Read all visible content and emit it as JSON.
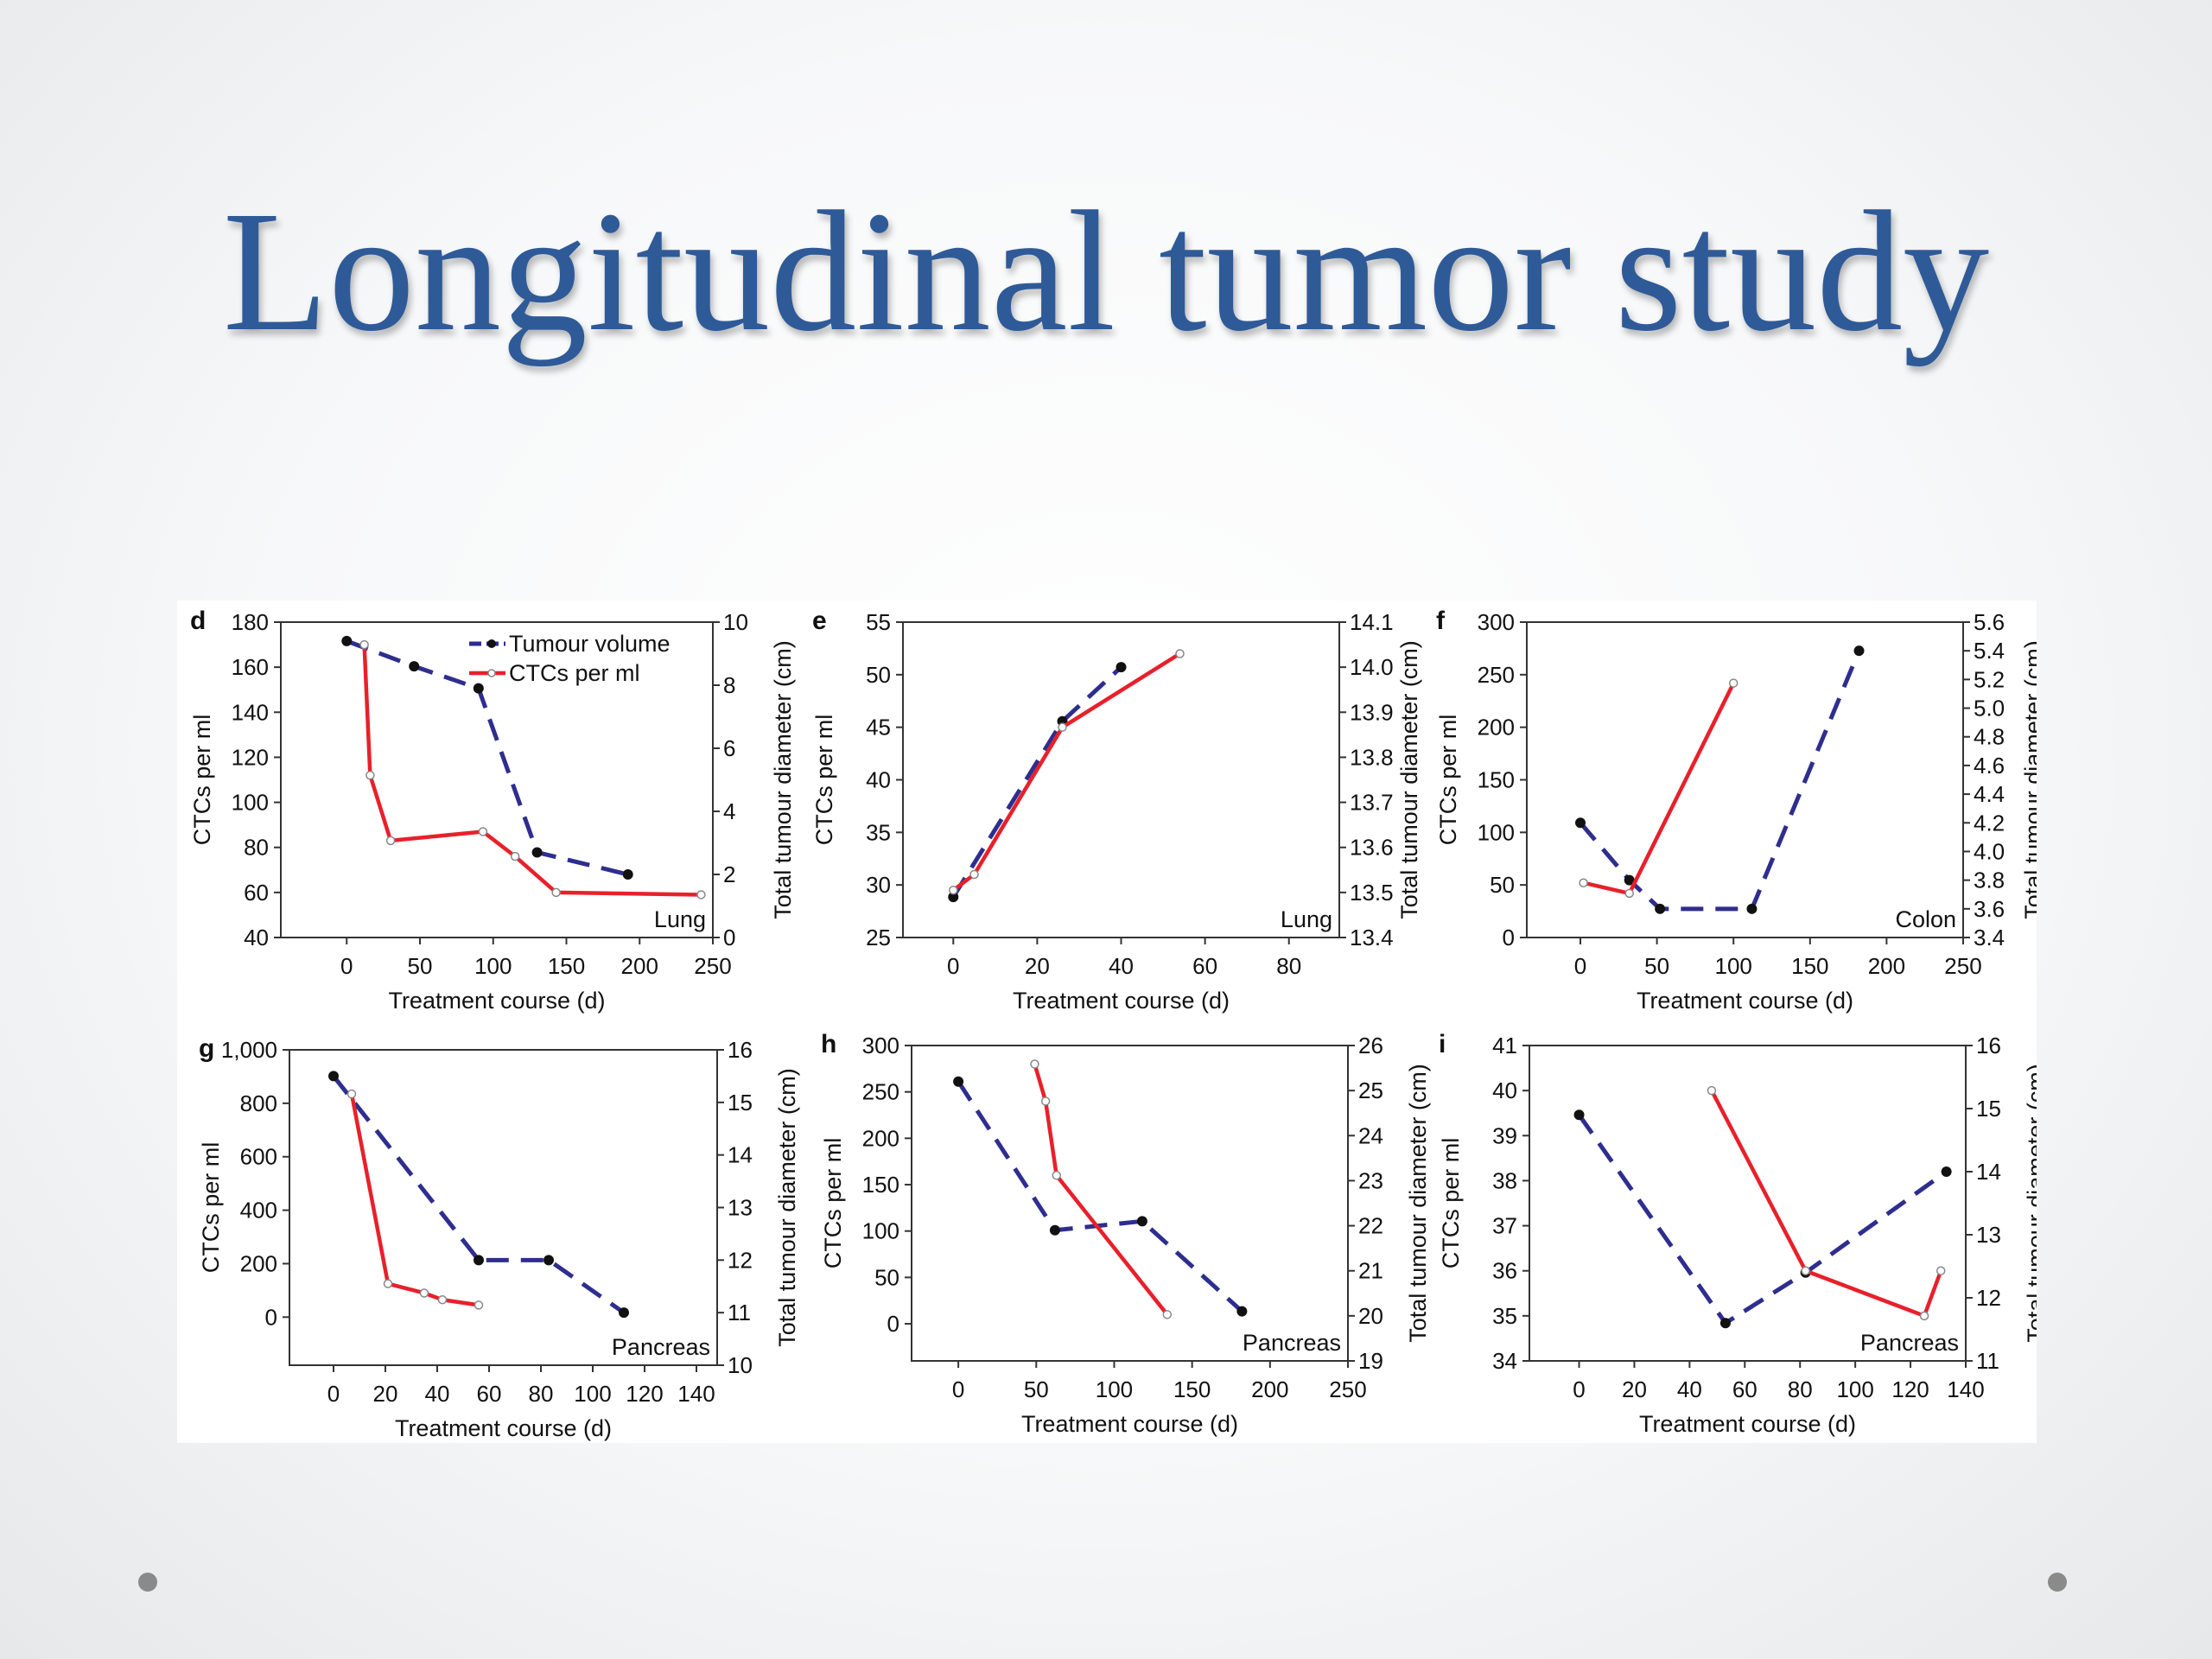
{
  "title": "Longitudinal tumor study",
  "colors": {
    "tumour": "#2e2e8f",
    "ctc": "#e8202a",
    "title": "#2f5a98"
  },
  "legend": {
    "tumour": "Tumour volume",
    "ctc": "CTCs per ml"
  },
  "chart_data": [
    {
      "type": "line",
      "panel": "d",
      "site": "Lung",
      "xlabel": "Treatment course (d)",
      "ylabel": "CTCs per ml",
      "y2label": "Total tumour diameter (cm)",
      "xlim": [
        -45,
        250
      ],
      "xticks": [
        0,
        50,
        100,
        150,
        200,
        250
      ],
      "xtickLabels": [
        "0",
        "50",
        "100",
        "150",
        "200",
        "250"
      ],
      "ylim": [
        40,
        180
      ],
      "yticks": [
        40,
        60,
        80,
        100,
        120,
        140,
        160,
        180
      ],
      "ytickLabels": [
        "40",
        "60",
        "80",
        "100",
        "120",
        "140",
        "160",
        "180"
      ],
      "y2lim": [
        0,
        10
      ],
      "y2ticks": [
        0,
        2,
        4,
        6,
        8,
        10
      ],
      "y2tickLabels": [
        "0",
        "2",
        "4",
        "6",
        "8",
        "10"
      ],
      "legend_position": "top-right",
      "series": [
        {
          "name": "Tumour volume",
          "axis": "right",
          "style": "dashed",
          "x": [
            0,
            46,
            90,
            130,
            192
          ],
          "y": [
            9.4,
            8.6,
            7.9,
            2.7,
            2.0
          ]
        },
        {
          "name": "CTCs per ml",
          "axis": "left",
          "style": "solid",
          "x": [
            12,
            16,
            30,
            93,
            115,
            143,
            242
          ],
          "y": [
            170,
            112,
            83,
            87,
            76,
            60,
            59
          ]
        }
      ]
    },
    {
      "type": "line",
      "panel": "e",
      "site": "Lung",
      "xlabel": "Treatment course (d)",
      "ylabel": "CTCs per ml",
      "y2label": "Total tumour diameter (cm)",
      "xlim": [
        -12,
        92
      ],
      "xticks": [
        0,
        20,
        40,
        60,
        80
      ],
      "xtickLabels": [
        "0",
        "20",
        "40",
        "60",
        "80"
      ],
      "ylim": [
        25,
        55
      ],
      "yticks": [
        25,
        30,
        35,
        40,
        45,
        50,
        55
      ],
      "ytickLabels": [
        "25",
        "30",
        "35",
        "40",
        "45",
        "50",
        "55"
      ],
      "y2lim": [
        13.4,
        14.1
      ],
      "y2ticks": [
        13.4,
        13.5,
        13.6,
        13.7,
        13.8,
        13.9,
        14.0,
        14.1
      ],
      "y2tickLabels": [
        "13.4",
        "13.5",
        "13.6",
        "13.7",
        "13.8",
        "13.9",
        "14.0",
        "14.1"
      ],
      "series": [
        {
          "name": "Tumour volume",
          "axis": "right",
          "style": "dashed",
          "x": [
            0,
            26,
            40
          ],
          "y": [
            13.49,
            13.88,
            14.0
          ]
        },
        {
          "name": "CTCs per ml",
          "axis": "left",
          "style": "solid",
          "x": [
            0,
            5,
            26,
            54
          ],
          "y": [
            29.5,
            31,
            45,
            52
          ]
        }
      ]
    },
    {
      "type": "line",
      "panel": "f",
      "site": "Colon",
      "xlabel": "Treatment course (d)",
      "ylabel": "CTCs per ml",
      "y2label": "Total tumour diameter (cm)",
      "xlim": [
        -35,
        250
      ],
      "xticks": [
        0,
        50,
        100,
        150,
        200,
        250
      ],
      "xtickLabels": [
        "0",
        "50",
        "100",
        "150",
        "200",
        "250"
      ],
      "ylim": [
        0,
        300
      ],
      "yticks": [
        0,
        50,
        100,
        150,
        200,
        250,
        300
      ],
      "ytickLabels": [
        "0",
        "50",
        "100",
        "150",
        "200",
        "250",
        "300"
      ],
      "y2lim": [
        3.4,
        5.6
      ],
      "y2ticks": [
        3.4,
        3.6,
        3.8,
        4.0,
        4.2,
        4.4,
        4.6,
        4.8,
        5.0,
        5.2,
        5.4,
        5.6
      ],
      "y2tickLabels": [
        "3.4",
        "3.6",
        "3.8",
        "4.0",
        "4.2",
        "4.4",
        "4.6",
        "4.8",
        "5.0",
        "5.2",
        "5.4",
        "5.6"
      ],
      "series": [
        {
          "name": "Tumour volume",
          "axis": "right",
          "style": "dashed",
          "x": [
            0,
            32,
            52,
            112,
            182
          ],
          "y": [
            4.2,
            3.8,
            3.6,
            3.6,
            5.4
          ]
        },
        {
          "name": "CTCs per ml",
          "axis": "left",
          "style": "solid",
          "x": [
            2,
            32,
            100
          ],
          "y": [
            52,
            42,
            242
          ]
        }
      ]
    },
    {
      "type": "line",
      "panel": "g",
      "site": "Pancreas",
      "xlabel": "Treatment course (d)",
      "ylabel": "CTCs per ml",
      "y2label": "Total tumour diameter (cm)",
      "xlim": [
        -17,
        148
      ],
      "xticks": [
        0,
        20,
        40,
        60,
        80,
        100,
        120,
        140
      ],
      "xtickLabels": [
        "0",
        "20",
        "40",
        "60",
        "80",
        "100",
        "120",
        "140"
      ],
      "ylim": [
        -180,
        1000
      ],
      "yticks": [
        0,
        200,
        400,
        600,
        800,
        1000
      ],
      "ytickLabels": [
        "0",
        "200",
        "400",
        "600",
        "800",
        "1,000"
      ],
      "y2lim": [
        10,
        16
      ],
      "y2ticks": [
        10,
        11,
        12,
        13,
        14,
        15,
        16
      ],
      "y2tickLabels": [
        "10",
        "11",
        "12",
        "13",
        "14",
        "15",
        "16"
      ],
      "series": [
        {
          "name": "Tumour volume",
          "axis": "right",
          "style": "dashed",
          "x": [
            0,
            56,
            83,
            112
          ],
          "y": [
            15.5,
            12.0,
            12.0,
            11.0
          ]
        },
        {
          "name": "CTCs per ml",
          "axis": "left",
          "style": "solid",
          "x": [
            7,
            21,
            35,
            42,
            56
          ],
          "y": [
            835,
            125,
            90,
            65,
            45
          ]
        }
      ]
    },
    {
      "type": "line",
      "panel": "h",
      "site": "Pancreas",
      "xlabel": "Treatment course (d)",
      "ylabel": "CTCs per ml",
      "y2label": "Total tumour diameter (cm)",
      "xlim": [
        -30,
        250
      ],
      "xticks": [
        0,
        50,
        100,
        150,
        200,
        250
      ],
      "xtickLabels": [
        "0",
        "50",
        "100",
        "150",
        "200",
        "250"
      ],
      "ylim": [
        -40,
        300
      ],
      "yticks": [
        0,
        50,
        100,
        150,
        200,
        250,
        300
      ],
      "ytickLabels": [
        "0",
        "50",
        "100",
        "150",
        "200",
        "250",
        "300"
      ],
      "y2lim": [
        19,
        26
      ],
      "y2ticks": [
        19,
        20,
        21,
        22,
        23,
        24,
        25,
        26
      ],
      "y2tickLabels": [
        "19",
        "20",
        "21",
        "22",
        "23",
        "24",
        "25",
        "26"
      ],
      "series": [
        {
          "name": "Tumour volume",
          "axis": "right",
          "style": "dashed",
          "x": [
            0,
            62,
            118,
            182
          ],
          "y": [
            25.2,
            21.9,
            22.1,
            20.1
          ]
        },
        {
          "name": "CTCs per ml",
          "axis": "left",
          "style": "solid",
          "x": [
            49,
            56,
            63,
            134
          ],
          "y": [
            280,
            240,
            160,
            10
          ]
        }
      ]
    },
    {
      "type": "line",
      "panel": "i",
      "site": "Pancreas",
      "xlabel": "Treatment course (d)",
      "ylabel": "CTCs per ml",
      "y2label": "Total tumour diameter (cm)",
      "xlim": [
        -18,
        140
      ],
      "xticks": [
        0,
        20,
        40,
        60,
        80,
        100,
        120,
        140
      ],
      "xtickLabels": [
        "0",
        "20",
        "40",
        "60",
        "80",
        "100",
        "120",
        "140"
      ],
      "ylim": [
        34,
        41
      ],
      "yticks": [
        34,
        35,
        36,
        37,
        38,
        39,
        40,
        41
      ],
      "ytickLabels": [
        "34",
        "35",
        "36",
        "37",
        "38",
        "39",
        "40",
        "41"
      ],
      "y2lim": [
        11,
        16
      ],
      "y2ticks": [
        11,
        12,
        13,
        14,
        15,
        16
      ],
      "y2tickLabels": [
        "11",
        "12",
        "13",
        "14",
        "15",
        "16"
      ],
      "series": [
        {
          "name": "Tumour volume",
          "axis": "right",
          "style": "dashed",
          "x": [
            0,
            53,
            82,
            133
          ],
          "y": [
            14.9,
            11.6,
            12.4,
            14.0
          ]
        },
        {
          "name": "CTCs per ml",
          "axis": "left",
          "style": "solid",
          "x": [
            48,
            82,
            125,
            131
          ],
          "y": [
            40,
            36,
            35,
            36
          ]
        }
      ]
    }
  ]
}
